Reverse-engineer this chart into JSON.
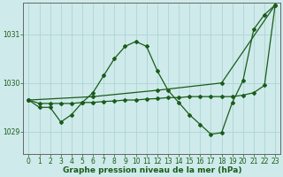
{
  "title": "Graphe pression niveau de la mer (hPa)",
  "background_color": "#ceeaea",
  "grid_color": "#afd4d4",
  "line_color": "#1a5c1a",
  "xlim": [
    -0.5,
    23.5
  ],
  "ylim": [
    1028.55,
    1031.65
  ],
  "yticks": [
    1029,
    1030,
    1031
  ],
  "xticks": [
    0,
    1,
    2,
    3,
    4,
    5,
    6,
    7,
    8,
    9,
    10,
    11,
    12,
    13,
    14,
    15,
    16,
    17,
    18,
    19,
    20,
    21,
    22,
    23
  ],
  "line1_x": [
    0,
    1,
    2,
    3,
    4,
    5,
    6,
    7,
    8,
    9,
    10,
    11,
    12,
    13,
    14,
    15,
    16,
    17,
    18,
    19,
    20,
    21,
    22,
    23
  ],
  "line1_y": [
    1029.65,
    1029.5,
    1029.5,
    1029.2,
    1029.35,
    1029.6,
    1029.8,
    1030.15,
    1030.5,
    1030.75,
    1030.85,
    1030.75,
    1030.25,
    1029.85,
    1029.6,
    1029.35,
    1029.15,
    1028.95,
    1028.98,
    1029.6,
    1030.05,
    1031.1,
    1031.4,
    1031.6
  ],
  "line2_x": [
    0,
    6,
    12,
    18,
    23
  ],
  "line2_y": [
    1029.65,
    1029.72,
    1029.85,
    1030.0,
    1031.6
  ],
  "line3_x": [
    0,
    1,
    2,
    3,
    4,
    5,
    6,
    7,
    8,
    9,
    10,
    11,
    12,
    13,
    14,
    15,
    16,
    17,
    18,
    19,
    20,
    21,
    22,
    23
  ],
  "line3_y": [
    1029.65,
    1029.58,
    1029.58,
    1029.58,
    1029.58,
    1029.6,
    1029.6,
    1029.62,
    1029.63,
    1029.65,
    1029.65,
    1029.67,
    1029.68,
    1029.7,
    1029.7,
    1029.72,
    1029.72,
    1029.72,
    1029.72,
    1029.72,
    1029.75,
    1029.8,
    1029.95,
    1031.6
  ],
  "marker": "D",
  "markersize": 2.0,
  "linewidth": 0.9,
  "tick_fontsize": 5.5,
  "label_fontsize": 6.5
}
